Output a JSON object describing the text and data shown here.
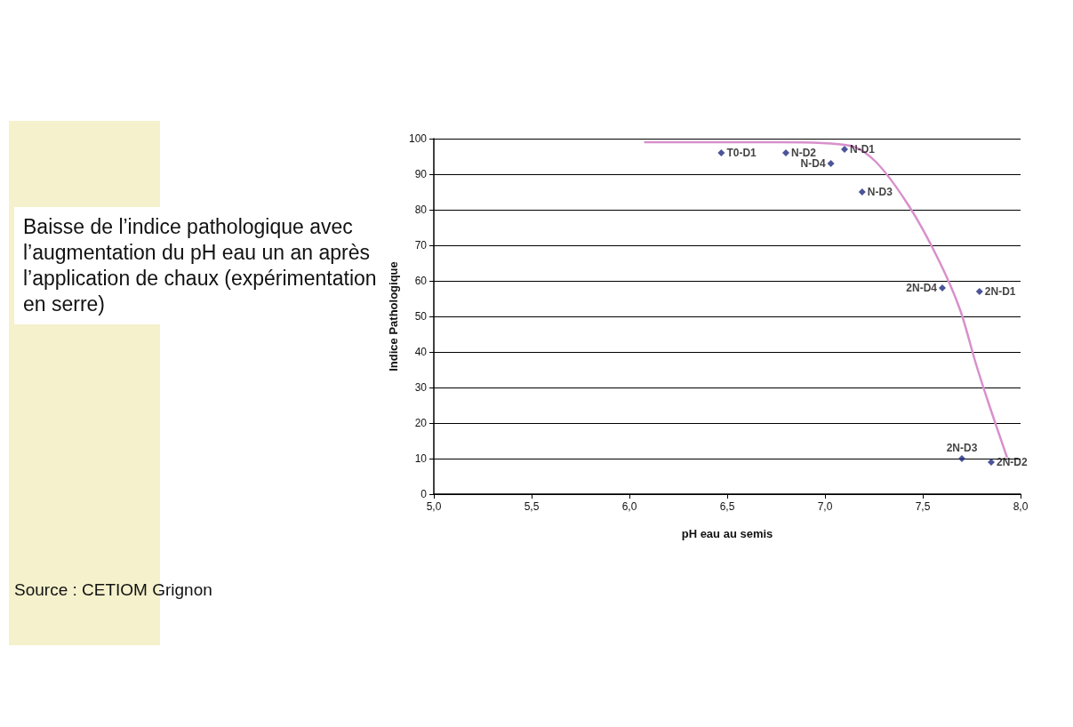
{
  "chart_data": {
    "type": "scatter",
    "title": "Baisse de l’indice pathologique avec l’augmentation du pH eau un an après l’application de chaux (expérimentation en serre)",
    "xlabel": "pH eau au semis",
    "ylabel": "Indice Pathologique",
    "xlim": [
      5,
      8
    ],
    "xticks": [
      {
        "value": 5,
        "label": "5,0"
      },
      {
        "value": 5.5,
        "label": "5,5"
      },
      {
        "value": 6,
        "label": "6,0"
      },
      {
        "value": 6.5,
        "label": "6,5"
      },
      {
        "value": 7,
        "label": "7,0"
      },
      {
        "value": 7.5,
        "label": "7,5"
      },
      {
        "value": 8,
        "label": "8,0"
      }
    ],
    "ylim": [
      0,
      100
    ],
    "yticks": [
      0,
      10,
      20,
      30,
      40,
      50,
      60,
      70,
      80,
      90,
      100
    ],
    "grid": "y",
    "series": [
      {
        "color": "#1f2a80",
        "marker": "diamond",
        "x": [
          6.47,
          6.8,
          7.1,
          7.03,
          7.19,
          7.6,
          7.79,
          7.7,
          7.85
        ],
        "values": [
          96,
          96,
          97,
          93,
          85,
          58,
          57,
          10,
          9
        ]
      },
      {
        "type": "line",
        "color": "#d890cc",
        "marker": "none",
        "x": [
          6.08,
          6.77,
          7.13,
          7.26,
          7.43,
          7.58,
          7.69,
          7.77,
          7.84,
          7.93
        ],
        "values": [
          99,
          99,
          98,
          93.5,
          81,
          66,
          52,
          37,
          25,
          10.5
        ]
      }
    ],
    "annotations": [
      {
        "text": "T0-D1",
        "x": 6.47,
        "y": 96
      },
      {
        "text": "N-D2",
        "x": 6.8,
        "y": 96
      },
      {
        "text": "N-D1",
        "x": 7.1,
        "y": 97
      },
      {
        "text": "N-D4",
        "x": 7.03,
        "y": 93
      },
      {
        "text": "N-D3",
        "x": 7.19,
        "y": 85
      },
      {
        "text": "2N-D4",
        "x": 7.6,
        "y": 58
      },
      {
        "text": "2N-D1",
        "x": 7.79,
        "y": 57
      },
      {
        "text": "2N-D3",
        "x": 7.7,
        "y": 10
      },
      {
        "text": "2N-D2",
        "x": 7.85,
        "y": 9
      },
      "Source : CETIOM Grignon"
    ]
  }
}
